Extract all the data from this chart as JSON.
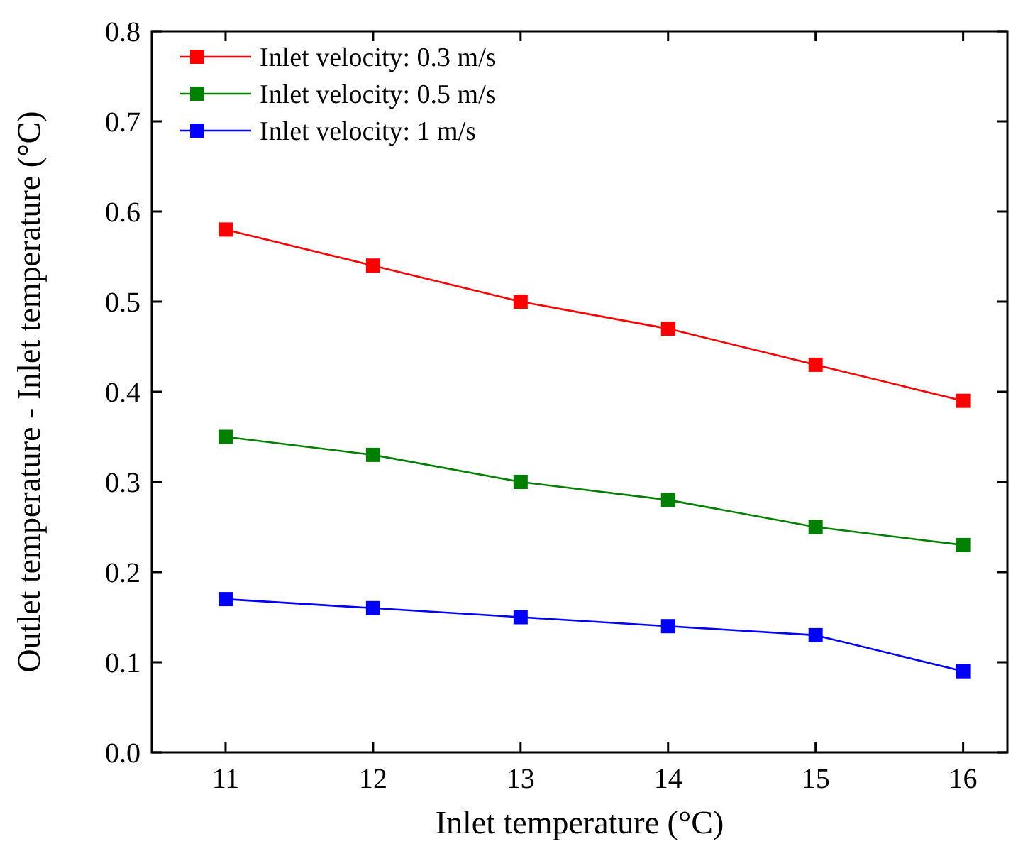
{
  "chart_data": {
    "type": "line",
    "xlabel": "Inlet temperature (°C)",
    "ylabel": "Outlet temperature - Inlet temperature (°C)",
    "x": [
      11,
      12,
      13,
      14,
      15,
      16
    ],
    "series": [
      {
        "name": "Inlet velocity: 0.3 m/s",
        "color": "#ff0000",
        "values": [
          0.58,
          0.54,
          0.5,
          0.47,
          0.43,
          0.39
        ]
      },
      {
        "name": "Inlet velocity: 0.5 m/s",
        "color": "#008000",
        "values": [
          0.35,
          0.33,
          0.3,
          0.28,
          0.25,
          0.23
        ]
      },
      {
        "name": "Inlet velocity: 1 m/s",
        "color": "#0000ff",
        "values": [
          0.17,
          0.16,
          0.15,
          0.14,
          0.13,
          0.09
        ]
      }
    ],
    "xlim": [
      10.5,
      16.3
    ],
    "xticks": [
      11,
      12,
      13,
      14,
      15,
      16
    ],
    "ylim": [
      0,
      0.8
    ],
    "yticks": [
      {
        "value": 0,
        "label": "0.0"
      },
      {
        "value": 0.1,
        "label": "0.1"
      },
      {
        "value": 0.2,
        "label": "0.2"
      },
      {
        "value": 0.3,
        "label": "0.3"
      },
      {
        "value": 0.4,
        "label": "0.4"
      },
      {
        "value": 0.5,
        "label": "0.5"
      },
      {
        "value": 0.6,
        "label": "0.6"
      },
      {
        "value": 0.7,
        "label": "0.7"
      },
      {
        "value": 0.8,
        "label": "0.8"
      }
    ],
    "legend": "top left",
    "marker": "square",
    "line_style": "solid",
    "grid": false
  }
}
